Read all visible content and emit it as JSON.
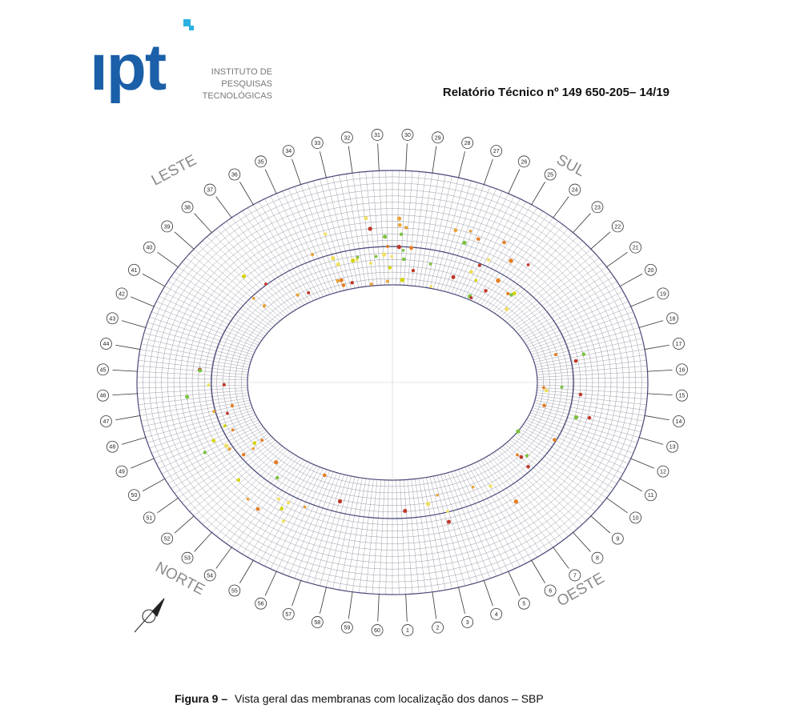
{
  "header": {
    "logo": "ıpt",
    "institute": [
      "INSTITUTO DE",
      "PESQUISAS",
      "TECNOLÓGICAS"
    ],
    "report": "Relatório Técnico nº 149 650-205– 14/19"
  },
  "figure": {
    "directions": [
      "LESTE",
      "SUL",
      "NORTE",
      "OESTE"
    ],
    "axis_labels": [
      "1",
      "2",
      "3",
      "4",
      "5",
      "6",
      "7",
      "8",
      "9",
      "10",
      "11",
      "12",
      "13",
      "14",
      "15",
      "16",
      "17",
      "18",
      "19",
      "20",
      "21",
      "22",
      "23",
      "24",
      "25",
      "26",
      "27",
      "28",
      "29",
      "30",
      "31",
      "32",
      "33",
      "34",
      "35",
      "36",
      "37",
      "38",
      "39",
      "40",
      "41",
      "42",
      "43",
      "44",
      "45",
      "46",
      "47",
      "48",
      "49",
      "50",
      "51",
      "52",
      "53",
      "54",
      "55",
      "56",
      "57",
      "58",
      "59",
      "60"
    ],
    "caption_label": "Figura 9 –",
    "caption": "Vista geral das membranas com localização dos danos – SBP"
  }
}
